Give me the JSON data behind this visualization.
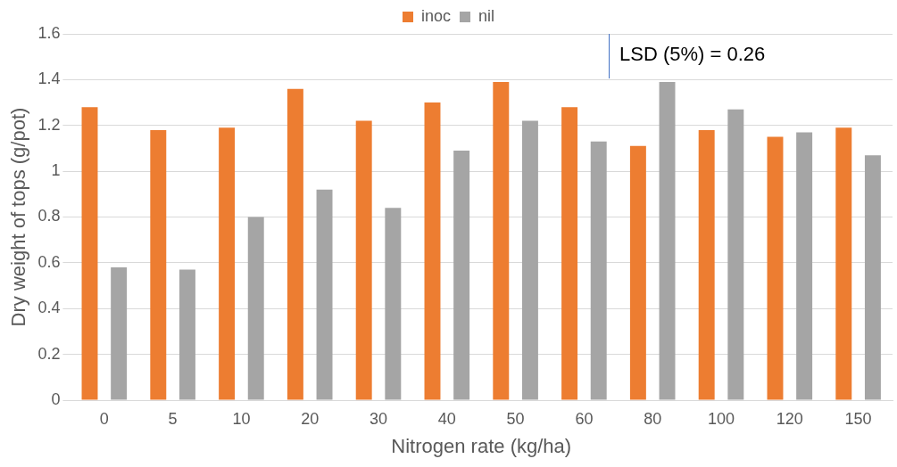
{
  "chart_data": {
    "type": "bar",
    "xlabel": "Nitrogen rate (kg/ha)",
    "ylabel": "Dry weight of tops (g/pot)",
    "categories": [
      "0",
      "5",
      "10",
      "20",
      "30",
      "40",
      "50",
      "60",
      "80",
      "100",
      "120",
      "150"
    ],
    "series": [
      {
        "name": "inoc",
        "color": "#ed7d31",
        "values": [
          1.28,
          1.18,
          1.19,
          1.36,
          1.22,
          1.3,
          1.39,
          1.28,
          1.11,
          1.18,
          1.15,
          1.19
        ]
      },
      {
        "name": "nil",
        "color": "#a5a5a5",
        "values": [
          0.58,
          0.57,
          0.8,
          0.92,
          0.84,
          1.09,
          1.22,
          1.13,
          1.39,
          1.27,
          1.17,
          1.07
        ]
      }
    ],
    "ylim": [
      0,
      1.6
    ],
    "yticks": [
      0,
      0.2,
      0.4,
      0.6,
      0.8,
      1,
      1.2,
      1.4,
      1.6
    ],
    "grid": "y",
    "legend": "top",
    "annotations": [
      "LSD (5%) = 0.26"
    ]
  }
}
